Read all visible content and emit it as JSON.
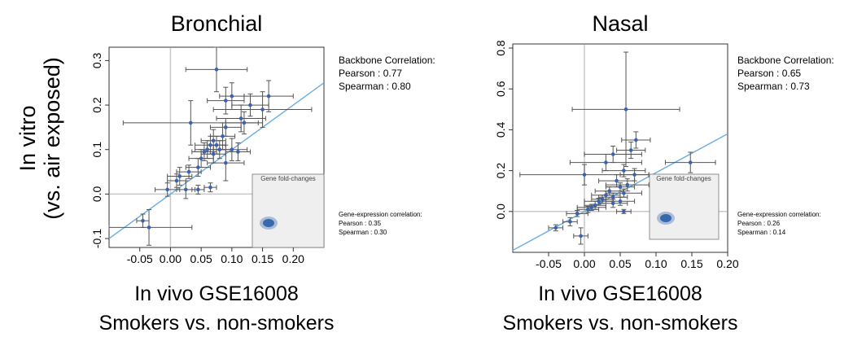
{
  "figure": {
    "ylabel_line1": "In vitro",
    "ylabel_line2": "(vs. air exposed)"
  },
  "chart_data": [
    {
      "type": "scatter",
      "panel": "bronchial",
      "title": "Bronchial",
      "xlabel_line1": "In vivo GSE16008",
      "xlabel_line2": "Smokers vs. non-smokers",
      "xlim": [
        -0.1,
        0.25
      ],
      "ylim": [
        -0.12,
        0.33
      ],
      "xticks": [
        -0.05,
        0.0,
        0.05,
        0.1,
        0.15,
        0.2
      ],
      "xtick_labels": [
        "-0.05",
        "0.00",
        "0.05",
        "0.10",
        "0.15",
        "0.20"
      ],
      "yticks": [
        -0.1,
        0.0,
        0.1,
        0.2,
        0.3
      ],
      "ytick_labels": [
        "-0.1",
        "0.0",
        "0.1",
        "0.2",
        "0.3"
      ],
      "zero_lines": true,
      "fit_line": {
        "slope": 1.0,
        "intercept": 0.0,
        "color": "#6aaee0"
      },
      "points": [
        {
          "x": 0.075,
          "y": 0.28,
          "xerr": 0.05,
          "yerr": 0.05
        },
        {
          "x": 0.033,
          "y": 0.16,
          "xerr": 0.11,
          "yerr": 0.05
        },
        {
          "x": 0.09,
          "y": 0.21,
          "xerr": 0.03,
          "yerr": 0.03
        },
        {
          "x": 0.1,
          "y": 0.22,
          "xerr": 0.02,
          "yerr": 0.03
        },
        {
          "x": 0.13,
          "y": 0.2,
          "xerr": 0.03,
          "yerr": 0.025
        },
        {
          "x": 0.115,
          "y": 0.17,
          "xerr": 0.04,
          "yerr": 0.03
        },
        {
          "x": 0.15,
          "y": 0.19,
          "xerr": 0.08,
          "yerr": 0.04
        },
        {
          "x": 0.16,
          "y": 0.22,
          "xerr": 0.04,
          "yerr": 0.035
        },
        {
          "x": 0.12,
          "y": 0.16,
          "xerr": 0.03,
          "yerr": 0.025
        },
        {
          "x": 0.09,
          "y": 0.15,
          "xerr": 0.025,
          "yerr": 0.02
        },
        {
          "x": 0.085,
          "y": 0.13,
          "xerr": 0.02,
          "yerr": 0.03
        },
        {
          "x": 0.07,
          "y": 0.12,
          "xerr": 0.02,
          "yerr": 0.025
        },
        {
          "x": 0.065,
          "y": 0.11,
          "xerr": 0.025,
          "yerr": 0.02
        },
        {
          "x": 0.06,
          "y": 0.1,
          "xerr": 0.02,
          "yerr": 0.02
        },
        {
          "x": 0.055,
          "y": 0.095,
          "xerr": 0.02,
          "yerr": 0.02
        },
        {
          "x": 0.07,
          "y": 0.09,
          "xerr": 0.02,
          "yerr": 0.02
        },
        {
          "x": 0.075,
          "y": 0.11,
          "xerr": 0.015,
          "yerr": 0.02
        },
        {
          "x": 0.08,
          "y": 0.1,
          "xerr": 0.02,
          "yerr": 0.02
        },
        {
          "x": 0.1,
          "y": 0.1,
          "xerr": 0.025,
          "yerr": 0.025
        },
        {
          "x": 0.11,
          "y": 0.095,
          "xerr": 0.02,
          "yerr": 0.02
        },
        {
          "x": 0.09,
          "y": 0.07,
          "xerr": 0.03,
          "yerr": 0.04
        },
        {
          "x": 0.05,
          "y": 0.08,
          "xerr": 0.02,
          "yerr": 0.02
        },
        {
          "x": 0.045,
          "y": 0.06,
          "xerr": 0.02,
          "yerr": 0.02
        },
        {
          "x": 0.03,
          "y": 0.05,
          "xerr": 0.02,
          "yerr": 0.015
        },
        {
          "x": 0.015,
          "y": 0.04,
          "xerr": 0.02,
          "yerr": 0.02
        },
        {
          "x": 0.01,
          "y": 0.03,
          "xerr": 0.015,
          "yerr": 0.015
        },
        {
          "x": -0.005,
          "y": 0.01,
          "xerr": 0.02,
          "yerr": 0.015
        },
        {
          "x": 0.025,
          "y": 0.01,
          "xerr": 0.015,
          "yerr": 0.02
        },
        {
          "x": 0.045,
          "y": 0.01,
          "xerr": 0.01,
          "yerr": 0.01
        },
        {
          "x": 0.065,
          "y": 0.015,
          "xerr": 0.01,
          "yerr": 0.01
        },
        {
          "x": -0.045,
          "y": -0.06,
          "xerr": 0.01,
          "yerr": 0.015
        },
        {
          "x": -0.035,
          "y": -0.075,
          "xerr": 0.07,
          "yerr": 0.04
        }
      ],
      "inset_label": "Gene fold-changes",
      "backbone_heading": "Backbone Correlation:",
      "backbone_pearson": "Pearson : 0.77",
      "backbone_spearman": "Spearman : 0.80",
      "gene_heading": "Gene-expression correlation:",
      "gene_pearson": "Pearson : 0.35",
      "gene_spearman": "Spearman : 0.30"
    },
    {
      "type": "scatter",
      "panel": "nasal",
      "title": "Nasal",
      "xlabel_line1": "In vivo GSE16008",
      "xlabel_line2": "Smokers vs. non-smokers",
      "xlim": [
        -0.1,
        0.2
      ],
      "ylim": [
        -0.2,
        0.82
      ],
      "xticks": [
        -0.05,
        0.0,
        0.05,
        0.1,
        0.15,
        0.2
      ],
      "xtick_labels": [
        "-0.05",
        "0.00",
        "0.05",
        "0.10",
        "0.15",
        "0.20"
      ],
      "yticks": [
        0.0,
        0.2,
        0.4,
        0.6,
        0.8
      ],
      "ytick_labels": [
        "0.0",
        "0.2",
        "0.4",
        "0.6",
        "0.8"
      ],
      "zero_lines": true,
      "fit_line": {
        "slope": 1.9,
        "intercept": 0.0,
        "color": "#6aaee0"
      },
      "points": [
        {
          "x": 0.058,
          "y": 0.5,
          "xerr": 0.075,
          "yerr": 0.28
        },
        {
          "x": 0.072,
          "y": 0.35,
          "xerr": 0.02,
          "yerr": 0.04
        },
        {
          "x": 0.065,
          "y": 0.3,
          "xerr": 0.02,
          "yerr": 0.04
        },
        {
          "x": 0.04,
          "y": 0.28,
          "xerr": 0.04,
          "yerr": 0.04
        },
        {
          "x": 0.03,
          "y": 0.24,
          "xerr": 0.05,
          "yerr": 0.04
        },
        {
          "x": 0.148,
          "y": 0.24,
          "xerr": 0.035,
          "yerr": 0.05
        },
        {
          "x": 0.0,
          "y": 0.18,
          "xerr": 0.09,
          "yerr": 0.05
        },
        {
          "x": 0.055,
          "y": 0.2,
          "xerr": 0.03,
          "yerr": 0.03
        },
        {
          "x": 0.07,
          "y": 0.18,
          "xerr": 0.02,
          "yerr": 0.03
        },
        {
          "x": 0.045,
          "y": 0.15,
          "xerr": 0.025,
          "yerr": 0.03
        },
        {
          "x": 0.05,
          "y": 0.12,
          "xerr": 0.02,
          "yerr": 0.02
        },
        {
          "x": 0.06,
          "y": 0.13,
          "xerr": 0.03,
          "yerr": 0.03
        },
        {
          "x": 0.035,
          "y": 0.1,
          "xerr": 0.02,
          "yerr": 0.02
        },
        {
          "x": 0.03,
          "y": 0.08,
          "xerr": 0.02,
          "yerr": 0.02
        },
        {
          "x": 0.025,
          "y": 0.06,
          "xerr": 0.015,
          "yerr": 0.02
        },
        {
          "x": 0.02,
          "y": 0.05,
          "xerr": 0.02,
          "yerr": 0.015
        },
        {
          "x": 0.015,
          "y": 0.03,
          "xerr": 0.015,
          "yerr": 0.02
        },
        {
          "x": 0.01,
          "y": 0.02,
          "xerr": 0.02,
          "yerr": 0.015
        },
        {
          "x": 0.005,
          "y": 0.01,
          "xerr": 0.015,
          "yerr": 0.015
        },
        {
          "x": 0.04,
          "y": 0.07,
          "xerr": 0.02,
          "yerr": 0.02
        },
        {
          "x": 0.04,
          "y": 0.04,
          "xerr": 0.02,
          "yerr": 0.02
        },
        {
          "x": 0.05,
          "y": 0.05,
          "xerr": 0.02,
          "yerr": 0.02
        },
        {
          "x": 0.055,
          "y": 0.09,
          "xerr": 0.025,
          "yerr": 0.02
        },
        {
          "x": 0.055,
          "y": 0.0,
          "xerr": 0.01,
          "yerr": 0.01
        },
        {
          "x": -0.01,
          "y": -0.01,
          "xerr": 0.015,
          "yerr": 0.015
        },
        {
          "x": -0.02,
          "y": -0.05,
          "xerr": 0.01,
          "yerr": 0.02
        },
        {
          "x": -0.04,
          "y": -0.08,
          "xerr": 0.01,
          "yerr": 0.015
        },
        {
          "x": -0.005,
          "y": -0.12,
          "xerr": 0.01,
          "yerr": 0.04
        }
      ],
      "inset_label": "Gene fold-changes",
      "backbone_heading": "Backbone Correlation:",
      "backbone_pearson": "Pearson : 0.65",
      "backbone_spearman": "Spearman : 0.73",
      "gene_heading": "Gene-expression correlation:",
      "gene_pearson": "Pearson : 0.26",
      "gene_spearman": "Spearman : 0.14"
    }
  ],
  "colors": {
    "point": "#3a62b0",
    "errorbar": "#555555",
    "zero_line": "#c8c8c8",
    "inset_bg": "#efefef",
    "inset_cluster": "#2a5fa8"
  }
}
